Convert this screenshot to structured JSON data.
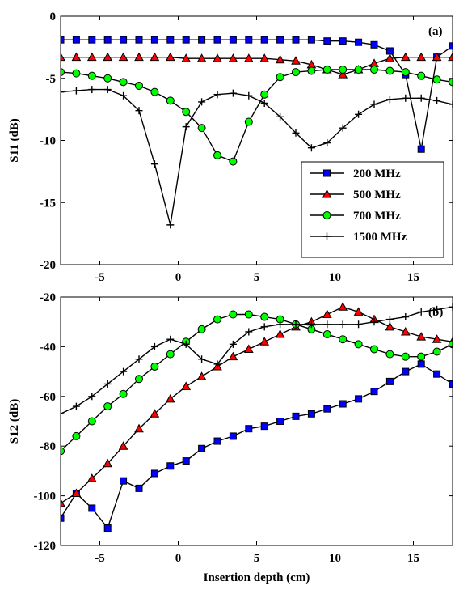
{
  "chart_data": [
    {
      "type": "line",
      "panel_label": "(a)",
      "ylabel": "S11 (dB)",
      "xlabel": "",
      "xlim": [
        -7.5,
        17.5
      ],
      "ylim": [
        -20,
        0
      ],
      "xticks": [
        -5,
        0,
        5,
        10,
        15
      ],
      "xtick_labels": [
        "-5",
        "0",
        "5",
        "10",
        "15"
      ],
      "yticks": [
        0,
        -5,
        -10,
        -15,
        -20
      ],
      "ytick_labels": [
        "0",
        "-5",
        "-10",
        "-15",
        "-20"
      ],
      "grid": false,
      "legend_position": "lower-right",
      "series": [
        {
          "name": "200 MHz",
          "marker": "square",
          "color": "#0000ff",
          "x": [
            -7.5,
            -6.5,
            -5.5,
            -4.5,
            -3.5,
            -2.5,
            -1.5,
            -0.5,
            0.5,
            1.5,
            2.5,
            3.5,
            4.5,
            5.5,
            6.5,
            7.5,
            8.5,
            9.5,
            10.5,
            11.5,
            12.5,
            13.5,
            14.5,
            15.5,
            16.5,
            17.5
          ],
          "y": [
            -1.9,
            -1.9,
            -1.9,
            -1.9,
            -1.9,
            -1.9,
            -1.9,
            -1.9,
            -1.9,
            -1.9,
            -1.9,
            -1.9,
            -1.9,
            -1.9,
            -1.9,
            -1.9,
            -1.9,
            -2.0,
            -2.0,
            -2.1,
            -2.3,
            -2.8,
            -4.7,
            -10.7,
            -3.3,
            -2.4
          ]
        },
        {
          "name": "500 MHz",
          "marker": "triangle",
          "color": "#ff0000",
          "x": [
            -7.5,
            -6.5,
            -5.5,
            -4.5,
            -3.5,
            -2.5,
            -1.5,
            -0.5,
            0.5,
            1.5,
            2.5,
            3.5,
            4.5,
            5.5,
            6.5,
            7.5,
            8.5,
            9.5,
            10.5,
            11.5,
            12.5,
            13.5,
            14.5,
            15.5,
            16.5,
            17.5
          ],
          "y": [
            -3.3,
            -3.3,
            -3.3,
            -3.3,
            -3.3,
            -3.3,
            -3.3,
            -3.3,
            -3.4,
            -3.4,
            -3.4,
            -3.4,
            -3.4,
            -3.4,
            -3.5,
            -3.6,
            -3.9,
            -4.3,
            -4.7,
            -4.3,
            -3.8,
            -3.4,
            -3.3,
            -3.3,
            -3.3,
            -3.3
          ]
        },
        {
          "name": "700 MHz",
          "marker": "circle",
          "color": "#00ff00",
          "x": [
            -7.5,
            -6.5,
            -5.5,
            -4.5,
            -3.5,
            -2.5,
            -1.5,
            -0.5,
            0.5,
            1.5,
            2.5,
            3.5,
            4.5,
            5.5,
            6.5,
            7.5,
            8.5,
            9.5,
            10.5,
            11.5,
            12.5,
            13.5,
            14.5,
            15.5,
            16.5,
            17.5
          ],
          "y": [
            -4.5,
            -4.6,
            -4.8,
            -5.0,
            -5.3,
            -5.6,
            -6.1,
            -6.8,
            -7.7,
            -9.0,
            -11.2,
            -11.7,
            -8.5,
            -6.3,
            -4.9,
            -4.5,
            -4.4,
            -4.3,
            -4.3,
            -4.3,
            -4.3,
            -4.4,
            -4.5,
            -4.8,
            -5.1,
            -5.3
          ]
        },
        {
          "name": "1500 MHz",
          "marker": "plus",
          "color": "#000000",
          "x": [
            -7.5,
            -6.5,
            -5.5,
            -4.5,
            -3.5,
            -2.5,
            -1.5,
            -0.5,
            0.5,
            1.5,
            2.5,
            3.5,
            4.5,
            5.5,
            6.5,
            7.5,
            8.5,
            9.5,
            10.5,
            11.5,
            12.5,
            13.5,
            14.5,
            15.5,
            16.5,
            17.5
          ],
          "y": [
            -6.1,
            -6.0,
            -5.9,
            -5.9,
            -6.4,
            -7.6,
            -11.9,
            -16.8,
            -8.9,
            -6.9,
            -6.3,
            -6.2,
            -6.4,
            -7.0,
            -8.1,
            -9.4,
            -10.6,
            -10.2,
            -9.0,
            -7.9,
            -7.1,
            -6.7,
            -6.6,
            -6.6,
            -6.8,
            -7.1
          ]
        }
      ]
    },
    {
      "type": "line",
      "panel_label": "(b)",
      "ylabel": "S12 (dB)",
      "xlabel": "Insertion depth (cm)",
      "xlim": [
        -7.5,
        17.5
      ],
      "ylim": [
        -120,
        -20
      ],
      "xticks": [
        -5,
        0,
        5,
        10,
        15
      ],
      "xtick_labels": [
        "-5",
        "0",
        "5",
        "10",
        "15"
      ],
      "yticks": [
        -20,
        -40,
        -60,
        -80,
        -100,
        -120
      ],
      "ytick_labels": [
        "-20",
        "-40",
        "-60",
        "-80",
        "-100",
        "-120"
      ],
      "grid": false,
      "series": [
        {
          "name": "200 MHz",
          "marker": "square",
          "color": "#0000ff",
          "x": [
            -7.5,
            -6.5,
            -5.5,
            -4.5,
            -3.5,
            -2.5,
            -1.5,
            -0.5,
            0.5,
            1.5,
            2.5,
            3.5,
            4.5,
            5.5,
            6.5,
            7.5,
            8.5,
            9.5,
            10.5,
            11.5,
            12.5,
            13.5,
            14.5,
            15.5,
            16.5,
            17.5
          ],
          "y": [
            -109,
            -99,
            -105,
            -113,
            -94,
            -97,
            -91,
            -88,
            -86,
            -81,
            -78,
            -76,
            -73,
            -72,
            -70,
            -68,
            -67,
            -65,
            -63,
            -61,
            -58,
            -54,
            -50,
            -47,
            -51,
            -55
          ]
        },
        {
          "name": "500 MHz",
          "marker": "triangle",
          "color": "#ff0000",
          "x": [
            -7.5,
            -6.5,
            -5.5,
            -4.5,
            -3.5,
            -2.5,
            -1.5,
            -0.5,
            0.5,
            1.5,
            2.5,
            3.5,
            4.5,
            5.5,
            6.5,
            7.5,
            8.5,
            9.5,
            10.5,
            11.5,
            12.5,
            13.5,
            14.5,
            15.5,
            16.5,
            17.5
          ],
          "y": [
            -103,
            -99,
            -93,
            -87,
            -80,
            -73,
            -67,
            -61,
            -56,
            -52,
            -48,
            -44,
            -41,
            -38,
            -35,
            -32,
            -30,
            -27,
            -24,
            -26,
            -29,
            -32,
            -34,
            -36,
            -37,
            -38
          ]
        },
        {
          "name": "700 MHz",
          "marker": "circle",
          "color": "#00ff00",
          "x": [
            -7.5,
            -6.5,
            -5.5,
            -4.5,
            -3.5,
            -2.5,
            -1.5,
            -0.5,
            0.5,
            1.5,
            2.5,
            3.5,
            4.5,
            5.5,
            6.5,
            7.5,
            8.5,
            9.5,
            10.5,
            11.5,
            12.5,
            13.5,
            14.5,
            15.5,
            16.5,
            17.5
          ],
          "y": [
            -82,
            -76,
            -70,
            -64,
            -59,
            -53,
            -48,
            -43,
            -38,
            -33,
            -29,
            -27,
            -27,
            -28,
            -29,
            -31,
            -33,
            -35,
            -37,
            -39,
            -41,
            -43,
            -44,
            -44,
            -42,
            -39
          ]
        },
        {
          "name": "1500 MHz",
          "marker": "plus",
          "color": "#000000",
          "x": [
            -7.5,
            -6.5,
            -5.5,
            -4.5,
            -3.5,
            -2.5,
            -1.5,
            -0.5,
            0.5,
            1.5,
            2.5,
            3.5,
            4.5,
            5.5,
            6.5,
            7.5,
            8.5,
            9.5,
            10.5,
            11.5,
            12.5,
            13.5,
            14.5,
            15.5,
            16.5,
            17.5
          ],
          "y": [
            -67,
            -64,
            -60,
            -55,
            -50,
            -45,
            -40,
            -37,
            -39,
            -45,
            -47,
            -39,
            -34,
            -32,
            -31,
            -31,
            -31,
            -31,
            -31,
            -31,
            -30,
            -29,
            -28,
            -26,
            -25,
            -24
          ]
        }
      ]
    }
  ]
}
